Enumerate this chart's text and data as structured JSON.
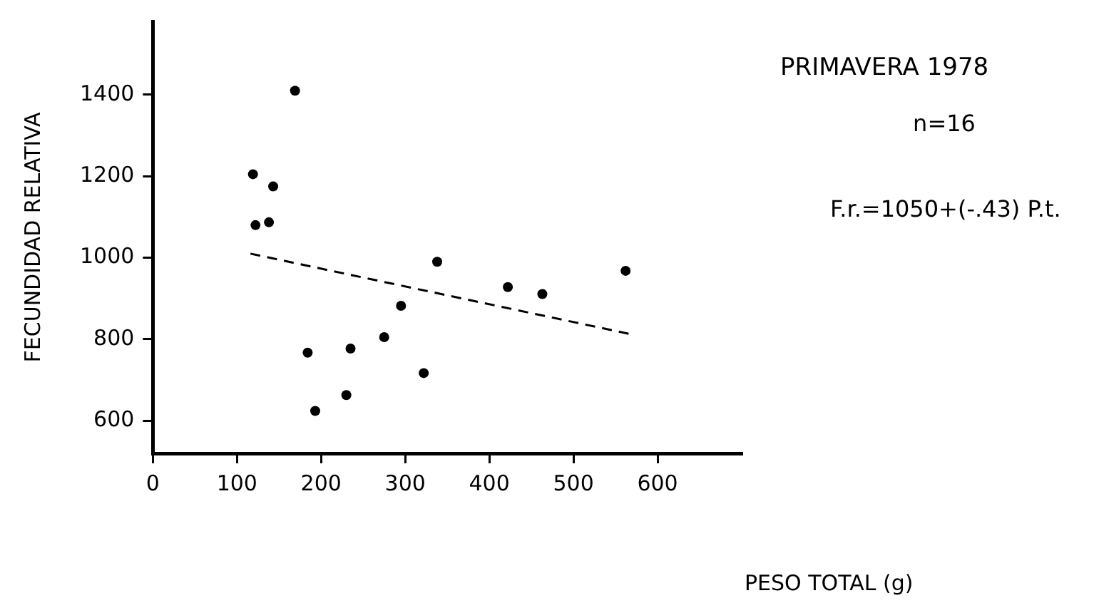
{
  "chart_data": {
    "type": "scatter",
    "title": "PRIMAVERA 1978",
    "xlabel": "PESO TOTAL (g)",
    "ylabel": "FECUNDIDAD RELATIVA",
    "annotations": [
      "n=16",
      "F.r.=1050+(-.43) P.t."
    ],
    "xlim": [
      0,
      700
    ],
    "xticks": [
      0,
      100,
      200,
      300,
      400,
      500,
      600
    ],
    "ylim": [
      520,
      1580
    ],
    "yticks": [
      600,
      800,
      1000,
      1200,
      1400
    ],
    "grid": false,
    "legend": false,
    "marker": "circle",
    "series": [
      {
        "color": "#000000",
        "x": [
          169,
          119,
          143,
          122,
          138,
          338,
          422,
          463,
          562,
          295,
          275,
          235,
          184,
          322,
          230,
          193
        ],
        "values": [
          1410,
          1205,
          1175,
          1080,
          1087,
          990,
          928,
          911,
          968,
          882,
          805,
          777,
          767,
          717,
          663,
          624
        ]
      },
      {
        "type": "line",
        "color": "#000000",
        "line_style": "dashed",
        "marker": "none",
        "x": [
          116,
          569
        ],
        "values": [
          1010,
          812
        ]
      }
    ]
  }
}
